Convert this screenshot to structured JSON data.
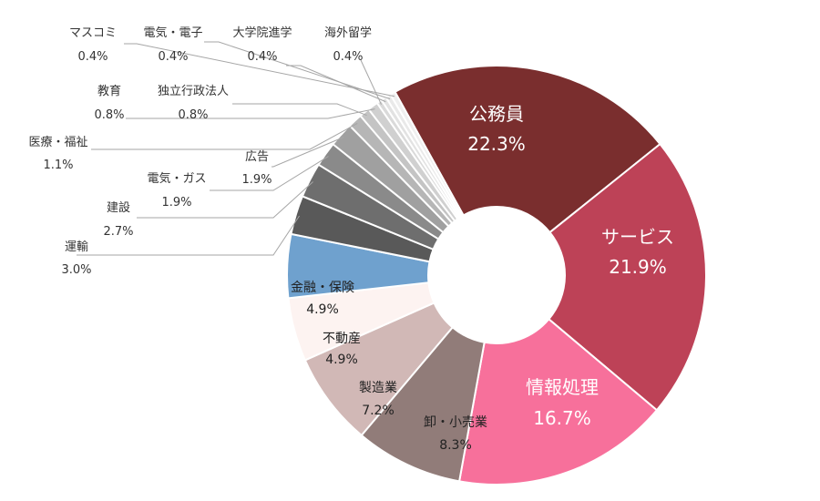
{
  "chart_data": {
    "type": "pie",
    "title": "",
    "legend": "none",
    "slices": [
      {
        "name": "公務員",
        "value": 22.3,
        "label": "22.3%",
        "color": "#7a2e2e"
      },
      {
        "name": "サービス",
        "value": 21.9,
        "label": "21.9%",
        "color": "#bd4257"
      },
      {
        "name": "情報処理",
        "value": 16.7,
        "label": "16.7%",
        "color": "#f7709b"
      },
      {
        "name": "卸・小売業",
        "value": 8.3,
        "label": "8.3%",
        "color": "#917c79"
      },
      {
        "name": "製造業",
        "value": 7.2,
        "label": "7.2%",
        "color": "#d1b8b6"
      },
      {
        "name": "不動産",
        "value": 4.9,
        "label": "4.9%",
        "color": "#fdf3f1"
      },
      {
        "name": "金融・保険",
        "value": 4.9,
        "label": "4.9%",
        "color": "#6fa1ce"
      },
      {
        "name": "運輸",
        "value": 3.0,
        "label": "3.0%",
        "color": "#595959"
      },
      {
        "name": "建設",
        "value": 2.7,
        "label": "2.7%",
        "color": "#6e6e6e"
      },
      {
        "name": "電気・ガス",
        "value": 1.9,
        "label": "1.9%",
        "color": "#8a8a8a"
      },
      {
        "name": "広告",
        "value": 1.9,
        "label": "1.9%",
        "color": "#a0a0a0"
      },
      {
        "name": "医療・福祉",
        "value": 1.1,
        "label": "1.1%",
        "color": "#b6b6b6"
      },
      {
        "name": "独立行政法人",
        "value": 0.8,
        "label": "0.8%",
        "color": "#c4c4c4"
      },
      {
        "name": "教育",
        "value": 0.8,
        "label": "0.8%",
        "color": "#d0d0d0"
      },
      {
        "name": "海外留学",
        "value": 0.4,
        "label": "0.4%",
        "color": "#dadada"
      },
      {
        "name": "大学院進学",
        "value": 0.4,
        "label": "0.4%",
        "color": "#e2e2e2"
      },
      {
        "name": "電気・電子",
        "value": 0.4,
        "label": "0.4%",
        "color": "#e9e9e9"
      },
      {
        "name": "マスコミ",
        "value": 0.4,
        "label": "0.4%",
        "color": "#efefef"
      }
    ]
  }
}
